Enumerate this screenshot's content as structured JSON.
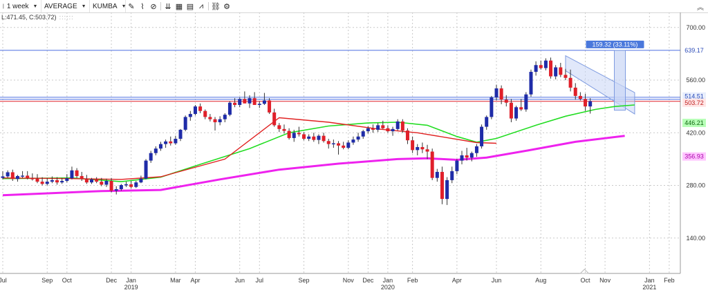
{
  "toolbar": {
    "period": "1 week",
    "chart_style": "AVERAGE",
    "symbol": "KUMBA"
  },
  "info_line": "L:471.45, C:503.72)",
  "colors": {
    "bull": "#1f2ca8",
    "bear": "#e0202a",
    "ma_short": "#e02020",
    "ma_mid": "#22dd22",
    "ma_long": "#ee22ee",
    "hline": "#4a6de0",
    "channel_fill": "#c9d6f5",
    "channel_stroke": "#7e9be0",
    "grid": "#c8c8c8"
  },
  "chart_data": {
    "type": "candlestick",
    "y_ticks": [
      "700.00",
      "560.00",
      "420.00",
      "280.00",
      "140.00"
    ],
    "y_tick_values": [
      700,
      560,
      420,
      280,
      140
    ],
    "ylim": [
      46,
      740
    ],
    "x_labels": [
      {
        "label": "Jul",
        "week": 0
      },
      {
        "label": "Sep",
        "week": 9
      },
      {
        "label": "Oct",
        "week": 13
      },
      {
        "label": "Dec",
        "week": 22
      },
      {
        "label": "Jan",
        "week": 26,
        "sub": "2019"
      },
      {
        "label": "Mar",
        "week": 35
      },
      {
        "label": "Apr",
        "week": 39
      },
      {
        "label": "Jun",
        "week": 48
      },
      {
        "label": "Jul",
        "week": 52
      },
      {
        "label": "Sep",
        "week": 61
      },
      {
        "label": "Nov",
        "week": 70
      },
      {
        "label": "Dec",
        "week": 74
      },
      {
        "label": "Jan",
        "week": 78,
        "sub": "2020"
      },
      {
        "label": "Feb",
        "week": 83
      },
      {
        "label": "Apr",
        "week": 92
      },
      {
        "label": "Jun",
        "week": 100
      },
      {
        "label": "Aug",
        "week": 109
      },
      {
        "label": "Oct",
        "week": 118
      },
      {
        "label": "Nov",
        "week": 122
      },
      {
        "label": "Jan",
        "week": 131,
        "sub": "2021"
      },
      {
        "label": "Feb",
        "week": 135
      }
    ],
    "ohlc": [
      [
        300,
        318,
        296,
        304
      ],
      [
        304,
        320,
        300,
        315
      ],
      [
        315,
        322,
        292,
        297
      ],
      [
        297,
        308,
        290,
        305
      ],
      [
        305,
        318,
        300,
        306
      ],
      [
        306,
        318,
        296,
        299
      ],
      [
        299,
        312,
        293,
        298
      ],
      [
        298,
        310,
        286,
        290
      ],
      [
        290,
        302,
        280,
        284
      ],
      [
        284,
        300,
        280,
        290
      ],
      [
        290,
        304,
        286,
        294
      ],
      [
        294,
        302,
        282,
        288
      ],
      [
        288,
        300,
        284,
        292
      ],
      [
        292,
        310,
        288,
        299
      ],
      [
        299,
        330,
        296,
        320
      ],
      [
        320,
        326,
        300,
        305
      ],
      [
        305,
        316,
        292,
        297
      ],
      [
        297,
        308,
        284,
        288
      ],
      [
        288,
        300,
        284,
        296
      ],
      [
        296,
        302,
        286,
        290
      ],
      [
        290,
        300,
        278,
        282
      ],
      [
        282,
        298,
        276,
        292
      ],
      [
        292,
        300,
        262,
        266
      ],
      [
        266,
        278,
        256,
        270
      ],
      [
        270,
        284,
        266,
        281
      ],
      [
        281,
        290,
        276,
        283
      ],
      [
        283,
        292,
        272,
        276
      ],
      [
        276,
        292,
        273,
        288
      ],
      [
        288,
        306,
        286,
        298
      ],
      [
        298,
        350,
        296,
        346
      ],
      [
        346,
        372,
        340,
        366
      ],
      [
        366,
        384,
        360,
        378
      ],
      [
        378,
        396,
        372,
        390
      ],
      [
        390,
        402,
        380,
        397
      ],
      [
        397,
        410,
        386,
        392
      ],
      [
        392,
        412,
        388,
        404
      ],
      [
        404,
        430,
        398,
        428
      ],
      [
        428,
        466,
        424,
        462
      ],
      [
        462,
        478,
        452,
        470
      ],
      [
        470,
        494,
        466,
        490
      ],
      [
        490,
        498,
        472,
        478
      ],
      [
        478,
        482,
        456,
        462
      ],
      [
        462,
        470,
        450,
        456
      ],
      [
        456,
        462,
        426,
        448
      ],
      [
        448,
        464,
        440,
        456
      ],
      [
        456,
        472,
        448,
        468
      ],
      [
        468,
        504,
        464,
        500
      ],
      [
        500,
        512,
        488,
        494
      ],
      [
        494,
        514,
        488,
        510
      ],
      [
        510,
        530,
        500,
        498
      ],
      [
        498,
        520,
        486,
        512
      ],
      [
        512,
        528,
        500,
        494
      ],
      [
        494,
        504,
        486,
        497
      ],
      [
        497,
        526,
        494,
        506
      ],
      [
        506,
        512,
        470,
        474
      ],
      [
        474,
        484,
        436,
        440
      ],
      [
        440,
        446,
        422,
        430
      ],
      [
        430,
        442,
        418,
        425
      ],
      [
        425,
        432,
        402,
        406
      ],
      [
        406,
        428,
        396,
        420
      ],
      [
        420,
        436,
        410,
        416
      ],
      [
        416,
        422,
        400,
        404
      ],
      [
        404,
        416,
        398,
        410
      ],
      [
        410,
        420,
        396,
        401
      ],
      [
        401,
        416,
        390,
        412
      ],
      [
        412,
        420,
        394,
        398
      ],
      [
        398,
        404,
        378,
        390
      ],
      [
        390,
        402,
        380,
        392
      ],
      [
        392,
        398,
        362,
        386
      ],
      [
        386,
        396,
        376,
        380
      ],
      [
        380,
        400,
        376,
        394
      ],
      [
        394,
        410,
        388,
        402
      ],
      [
        402,
        420,
        396,
        410
      ],
      [
        410,
        428,
        404,
        424
      ],
      [
        424,
        438,
        418,
        432
      ],
      [
        432,
        442,
        420,
        428
      ],
      [
        428,
        446,
        422,
        440
      ],
      [
        440,
        452,
        430,
        432
      ],
      [
        432,
        440,
        420,
        424
      ],
      [
        424,
        436,
        412,
        430
      ],
      [
        430,
        456,
        426,
        450
      ],
      [
        450,
        456,
        420,
        426
      ],
      [
        426,
        432,
        390,
        400
      ],
      [
        400,
        410,
        366,
        374
      ],
      [
        374,
        390,
        360,
        382
      ],
      [
        382,
        394,
        366,
        376
      ],
      [
        376,
        388,
        350,
        370
      ],
      [
        370,
        378,
        294,
        300
      ],
      [
        300,
        324,
        290,
        316
      ],
      [
        316,
        330,
        230,
        244
      ],
      [
        244,
        302,
        228,
        294
      ],
      [
        294,
        330,
        286,
        318
      ],
      [
        318,
        350,
        310,
        346
      ],
      [
        346,
        372,
        336,
        360
      ],
      [
        360,
        380,
        346,
        354
      ],
      [
        354,
        370,
        344,
        366
      ],
      [
        366,
        390,
        356,
        384
      ],
      [
        384,
        442,
        378,
        436
      ],
      [
        436,
        466,
        428,
        462
      ],
      [
        462,
        518,
        456,
        514
      ],
      [
        514,
        548,
        506,
        538
      ],
      [
        538,
        546,
        496,
        508
      ],
      [
        508,
        520,
        490,
        500
      ],
      [
        500,
        510,
        448,
        458
      ],
      [
        458,
        492,
        452,
        488
      ],
      [
        488,
        510,
        478,
        482
      ],
      [
        482,
        528,
        476,
        522
      ],
      [
        522,
        588,
        516,
        582
      ],
      [
        582,
        610,
        572,
        600
      ],
      [
        600,
        612,
        588,
        592
      ],
      [
        592,
        618,
        586,
        612
      ],
      [
        612,
        620,
        564,
        570
      ],
      [
        570,
        600,
        562,
        594
      ],
      [
        594,
        606,
        568,
        574
      ],
      [
        574,
        590,
        560,
        566
      ],
      [
        566,
        588,
        530,
        540
      ],
      [
        540,
        552,
        508,
        518
      ],
      [
        518,
        528,
        506,
        510
      ],
      [
        510,
        524,
        478,
        490
      ],
      [
        490,
        512,
        471,
        504
      ]
    ],
    "ma_short": [
      [
        0,
        300
      ],
      [
        14,
        298
      ],
      [
        24,
        296
      ],
      [
        32,
        303
      ],
      [
        45,
        350
      ],
      [
        56,
        460
      ],
      [
        66,
        448
      ],
      [
        76,
        430
      ],
      [
        84,
        420
      ],
      [
        96,
        394
      ],
      [
        100,
        392
      ]
    ],
    "ma_mid": [
      [
        0,
        298
      ],
      [
        14,
        300
      ],
      [
        24,
        290
      ],
      [
        32,
        302
      ],
      [
        40,
        336
      ],
      [
        50,
        378
      ],
      [
        58,
        420
      ],
      [
        66,
        438
      ],
      [
        74,
        446
      ],
      [
        80,
        448
      ],
      [
        86,
        440
      ],
      [
        92,
        410
      ],
      [
        96,
        395
      ],
      [
        100,
        405
      ],
      [
        108,
        440
      ],
      [
        114,
        464
      ],
      [
        120,
        482
      ],
      [
        124,
        490
      ],
      [
        128,
        494
      ],
      [
        128,
        494
      ]
    ],
    "ma_long": [
      [
        0,
        254
      ],
      [
        20,
        265
      ],
      [
        32,
        268
      ],
      [
        44,
        296
      ],
      [
        56,
        322
      ],
      [
        68,
        338
      ],
      [
        80,
        350
      ],
      [
        86,
        352
      ],
      [
        92,
        348
      ],
      [
        98,
        354
      ],
      [
        106,
        372
      ],
      [
        116,
        396
      ],
      [
        126,
        412
      ]
    ],
    "h_lines": [
      {
        "value": 639.17,
        "label": "639.17"
      },
      {
        "value": 514.51,
        "label": "514.51"
      }
    ],
    "red_line": {
      "value": 503.72,
      "label": "503.72"
    },
    "ma_labels": [
      {
        "value": 446.21,
        "label": "446.21"
      },
      {
        "value": 356.93,
        "label": "356.93"
      }
    ],
    "measure": {
      "label": "159.32 (33.11%)",
      "from": 480,
      "to": 639.17,
      "week": 125
    },
    "channel": {
      "from_week": 114,
      "to_week": 128,
      "top_start": 625,
      "top_end": 527,
      "bottom_start": 585,
      "bottom_end": 470
    }
  }
}
